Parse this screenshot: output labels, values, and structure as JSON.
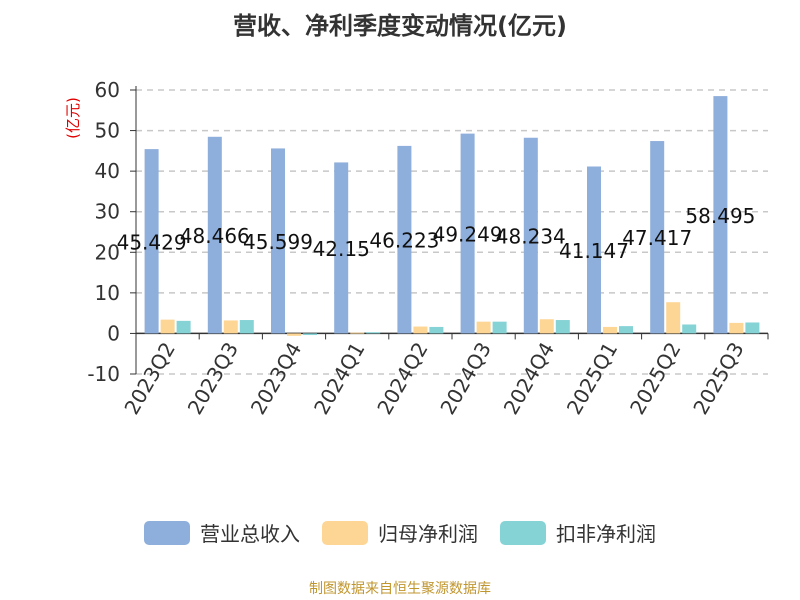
{
  "title": "营收、净利季度变动情况(亿元)",
  "source": "制图数据来自恒生聚源数据库",
  "chart_data": {
    "type": "bar",
    "ylabel": "(亿元)",
    "ylim": [
      -10,
      60
    ],
    "yticks": [
      -10,
      0,
      10,
      20,
      30,
      40,
      50,
      60
    ],
    "grid": true,
    "legend_position": "bottom",
    "categories": [
      "2023Q2",
      "2023Q3",
      "2023Q4",
      "2024Q1",
      "2024Q2",
      "2024Q3",
      "2024Q4",
      "2025Q1",
      "2025Q2",
      "2025Q3"
    ],
    "series": [
      {
        "name": "营业总收入",
        "color": "#8eaedb",
        "values": [
          45.429,
          48.466,
          45.599,
          42.15,
          46.223,
          49.249,
          48.234,
          41.147,
          47.417,
          58.495
        ],
        "labels": [
          "45.429",
          "48.466",
          "45.599",
          "42.15",
          "46.223",
          "49.249",
          "48.234",
          "41.147",
          "47.417",
          "58.495"
        ]
      },
      {
        "name": "归母净利润",
        "color": "#fdd696",
        "values": [
          3.4,
          3.2,
          -0.6,
          0.2,
          1.7,
          2.9,
          3.5,
          1.6,
          7.7,
          2.6
        ]
      },
      {
        "name": "扣非净利润",
        "color": "#86d3d6",
        "values": [
          3.1,
          3.3,
          -0.4,
          0.3,
          1.6,
          2.9,
          3.3,
          1.8,
          2.2,
          2.7
        ]
      }
    ]
  }
}
